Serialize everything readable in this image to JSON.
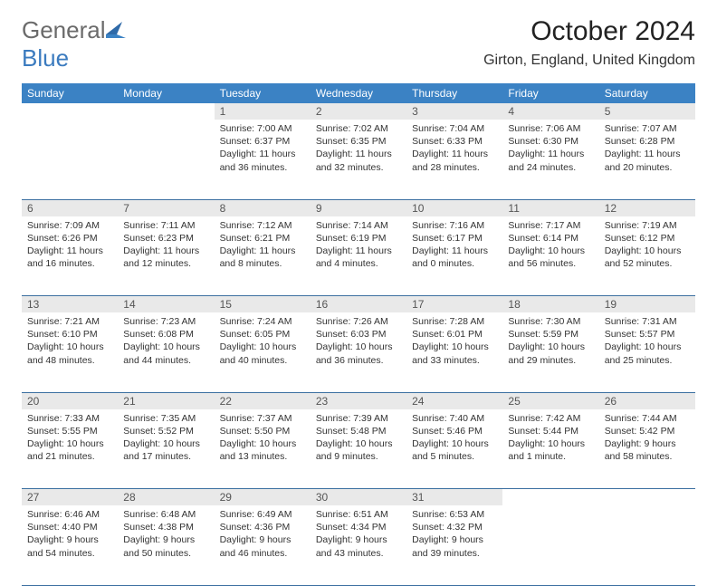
{
  "brand": {
    "part1": "General",
    "part2": "Blue"
  },
  "title": "October 2024",
  "location": "Girton, England, United Kingdom",
  "colors": {
    "header_bg": "#3b82c4",
    "header_text": "#ffffff",
    "daynum_bg": "#e9e9e9",
    "row_border": "#3b6fa0",
    "logo_gray": "#6b6b6b",
    "logo_blue": "#3b7bbf"
  },
  "typography": {
    "title_fontsize": 30,
    "location_fontsize": 16,
    "dayhead_fontsize": 12,
    "cell_fontsize": 10.5
  },
  "day_headers": [
    "Sunday",
    "Monday",
    "Tuesday",
    "Wednesday",
    "Thursday",
    "Friday",
    "Saturday"
  ],
  "weeks": [
    [
      null,
      null,
      {
        "n": "1",
        "sunrise": "7:00 AM",
        "sunset": "6:37 PM",
        "daylight": "11 hours and 36 minutes."
      },
      {
        "n": "2",
        "sunrise": "7:02 AM",
        "sunset": "6:35 PM",
        "daylight": "11 hours and 32 minutes."
      },
      {
        "n": "3",
        "sunrise": "7:04 AM",
        "sunset": "6:33 PM",
        "daylight": "11 hours and 28 minutes."
      },
      {
        "n": "4",
        "sunrise": "7:06 AM",
        "sunset": "6:30 PM",
        "daylight": "11 hours and 24 minutes."
      },
      {
        "n": "5",
        "sunrise": "7:07 AM",
        "sunset": "6:28 PM",
        "daylight": "11 hours and 20 minutes."
      }
    ],
    [
      {
        "n": "6",
        "sunrise": "7:09 AM",
        "sunset": "6:26 PM",
        "daylight": "11 hours and 16 minutes."
      },
      {
        "n": "7",
        "sunrise": "7:11 AM",
        "sunset": "6:23 PM",
        "daylight": "11 hours and 12 minutes."
      },
      {
        "n": "8",
        "sunrise": "7:12 AM",
        "sunset": "6:21 PM",
        "daylight": "11 hours and 8 minutes."
      },
      {
        "n": "9",
        "sunrise": "7:14 AM",
        "sunset": "6:19 PM",
        "daylight": "11 hours and 4 minutes."
      },
      {
        "n": "10",
        "sunrise": "7:16 AM",
        "sunset": "6:17 PM",
        "daylight": "11 hours and 0 minutes."
      },
      {
        "n": "11",
        "sunrise": "7:17 AM",
        "sunset": "6:14 PM",
        "daylight": "10 hours and 56 minutes."
      },
      {
        "n": "12",
        "sunrise": "7:19 AM",
        "sunset": "6:12 PM",
        "daylight": "10 hours and 52 minutes."
      }
    ],
    [
      {
        "n": "13",
        "sunrise": "7:21 AM",
        "sunset": "6:10 PM",
        "daylight": "10 hours and 48 minutes."
      },
      {
        "n": "14",
        "sunrise": "7:23 AM",
        "sunset": "6:08 PM",
        "daylight": "10 hours and 44 minutes."
      },
      {
        "n": "15",
        "sunrise": "7:24 AM",
        "sunset": "6:05 PM",
        "daylight": "10 hours and 40 minutes."
      },
      {
        "n": "16",
        "sunrise": "7:26 AM",
        "sunset": "6:03 PM",
        "daylight": "10 hours and 36 minutes."
      },
      {
        "n": "17",
        "sunrise": "7:28 AM",
        "sunset": "6:01 PM",
        "daylight": "10 hours and 33 minutes."
      },
      {
        "n": "18",
        "sunrise": "7:30 AM",
        "sunset": "5:59 PM",
        "daylight": "10 hours and 29 minutes."
      },
      {
        "n": "19",
        "sunrise": "7:31 AM",
        "sunset": "5:57 PM",
        "daylight": "10 hours and 25 minutes."
      }
    ],
    [
      {
        "n": "20",
        "sunrise": "7:33 AM",
        "sunset": "5:55 PM",
        "daylight": "10 hours and 21 minutes."
      },
      {
        "n": "21",
        "sunrise": "7:35 AM",
        "sunset": "5:52 PM",
        "daylight": "10 hours and 17 minutes."
      },
      {
        "n": "22",
        "sunrise": "7:37 AM",
        "sunset": "5:50 PM",
        "daylight": "10 hours and 13 minutes."
      },
      {
        "n": "23",
        "sunrise": "7:39 AM",
        "sunset": "5:48 PM",
        "daylight": "10 hours and 9 minutes."
      },
      {
        "n": "24",
        "sunrise": "7:40 AM",
        "sunset": "5:46 PM",
        "daylight": "10 hours and 5 minutes."
      },
      {
        "n": "25",
        "sunrise": "7:42 AM",
        "sunset": "5:44 PM",
        "daylight": "10 hours and 1 minute."
      },
      {
        "n": "26",
        "sunrise": "7:44 AM",
        "sunset": "5:42 PM",
        "daylight": "9 hours and 58 minutes."
      }
    ],
    [
      {
        "n": "27",
        "sunrise": "6:46 AM",
        "sunset": "4:40 PM",
        "daylight": "9 hours and 54 minutes."
      },
      {
        "n": "28",
        "sunrise": "6:48 AM",
        "sunset": "4:38 PM",
        "daylight": "9 hours and 50 minutes."
      },
      {
        "n": "29",
        "sunrise": "6:49 AM",
        "sunset": "4:36 PM",
        "daylight": "9 hours and 46 minutes."
      },
      {
        "n": "30",
        "sunrise": "6:51 AM",
        "sunset": "4:34 PM",
        "daylight": "9 hours and 43 minutes."
      },
      {
        "n": "31",
        "sunrise": "6:53 AM",
        "sunset": "4:32 PM",
        "daylight": "9 hours and 39 minutes."
      },
      null,
      null
    ]
  ],
  "labels": {
    "sunrise": "Sunrise:",
    "sunset": "Sunset:",
    "daylight": "Daylight:"
  }
}
